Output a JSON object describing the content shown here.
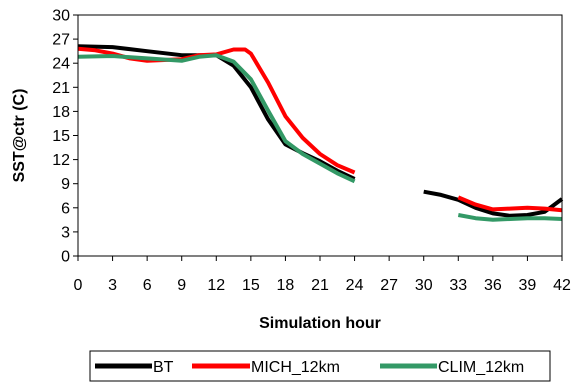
{
  "chart_data": {
    "type": "line",
    "title": "",
    "xlabel": "Simulation hour",
    "ylabel": "SST@ctr (C)",
    "xlim": [
      0,
      42
    ],
    "ylim": [
      0,
      30
    ],
    "xticks": [
      0,
      3,
      6,
      9,
      12,
      15,
      18,
      21,
      24,
      27,
      30,
      33,
      36,
      39,
      42
    ],
    "yticks": [
      0,
      3,
      6,
      9,
      12,
      15,
      18,
      21,
      24,
      27,
      30
    ],
    "grid": false,
    "legend_position": "bottom",
    "series": [
      {
        "name": "BT",
        "color": "#000000",
        "segments": [
          [
            [
              0,
              26.1
            ],
            [
              3,
              26.0
            ],
            [
              6,
              25.5
            ],
            [
              9,
              25.0
            ],
            [
              10.5,
              25.0
            ],
            [
              12,
              25.0
            ],
            [
              13.5,
              23.7
            ],
            [
              15,
              21.0
            ],
            [
              16.5,
              17.0
            ],
            [
              18,
              13.9
            ],
            [
              19.5,
              12.8
            ],
            [
              21,
              11.8
            ],
            [
              22.5,
              10.6
            ],
            [
              24,
              9.6
            ]
          ],
          [
            [
              30,
              8.0
            ],
            [
              31.5,
              7.6
            ],
            [
              33,
              7.0
            ],
            [
              34.5,
              6.0
            ],
            [
              36,
              5.3
            ],
            [
              37.5,
              5.0
            ],
            [
              39,
              5.1
            ],
            [
              40.5,
              5.5
            ],
            [
              42,
              7.1
            ]
          ]
        ]
      },
      {
        "name": "MICH_12km",
        "color": "#ff0000",
        "segments": [
          [
            [
              0,
              25.8
            ],
            [
              1.5,
              25.6
            ],
            [
              3,
              25.2
            ],
            [
              4.5,
              24.6
            ],
            [
              6,
              24.3
            ],
            [
              7.5,
              24.4
            ],
            [
              9,
              24.5
            ],
            [
              10.5,
              25.0
            ],
            [
              12,
              25.1
            ],
            [
              13.5,
              25.7
            ],
            [
              14.5,
              25.7
            ],
            [
              15,
              25.2
            ],
            [
              16.5,
              21.6
            ],
            [
              18,
              17.4
            ],
            [
              19.5,
              14.7
            ],
            [
              21,
              12.7
            ],
            [
              22.5,
              11.3
            ],
            [
              24,
              10.4
            ]
          ],
          [
            [
              33,
              7.3
            ],
            [
              34.5,
              6.4
            ],
            [
              36,
              5.8
            ],
            [
              37.5,
              5.9
            ],
            [
              39,
              6.0
            ],
            [
              40.5,
              5.9
            ],
            [
              42,
              5.7
            ]
          ]
        ]
      },
      {
        "name": "CLIM_12km",
        "color": "#339966",
        "segments": [
          [
            [
              0,
              24.8
            ],
            [
              3,
              24.9
            ],
            [
              6,
              24.6
            ],
            [
              9,
              24.3
            ],
            [
              10.5,
              24.8
            ],
            [
              12,
              25.0
            ],
            [
              13.5,
              24.2
            ],
            [
              15,
              22.0
            ],
            [
              16.5,
              18.1
            ],
            [
              18,
              14.3
            ],
            [
              19.5,
              12.7
            ],
            [
              21,
              11.5
            ],
            [
              22.5,
              10.3
            ],
            [
              24,
              9.3
            ]
          ],
          [
            [
              33,
              5.1
            ],
            [
              34.5,
              4.7
            ],
            [
              36,
              4.5
            ],
            [
              37.5,
              4.6
            ],
            [
              39,
              4.7
            ],
            [
              40.5,
              4.7
            ],
            [
              42,
              4.6
            ]
          ]
        ]
      }
    ]
  }
}
